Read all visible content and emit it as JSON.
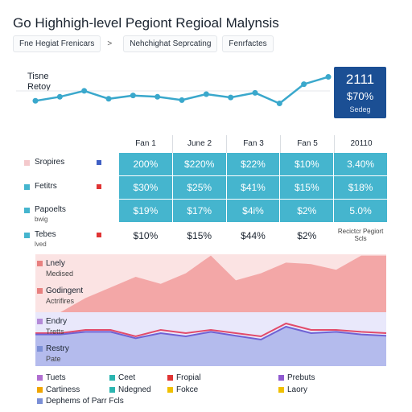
{
  "header": {
    "title": "Go Highhigh-level Pegiont Regioal Malynsis",
    "breadcrumbs": [
      "Fne Hegiat Frenicars",
      "Nehchighat Seprcating",
      "Fenrfactes"
    ],
    "separator": ">"
  },
  "spark": {
    "label_line1": "Tisne",
    "label_line2": "Retoy",
    "series_color": "#3aa8cc"
  },
  "kpi": {
    "value": "2111",
    "percent": "$70%",
    "caption": "Sedeg",
    "color": "#1b4f94"
  },
  "table": {
    "columns": [
      "Fan 1",
      "June 2",
      "Fan 3",
      "Fan 5",
      "20110"
    ],
    "rows": [
      {
        "label": "Sropires",
        "sub": "",
        "swatch": "#f4c9cc",
        "marker": "#3f5fc4",
        "cells": [
          "200%",
          "$220%",
          "$22%",
          "$10%",
          "3.40%"
        ],
        "style": "teal"
      },
      {
        "label": "Fetitrs",
        "sub": "",
        "swatch": "#45b5ce",
        "marker": "#e03434",
        "cells": [
          "$30%",
          "$25%",
          "$41%",
          "$15%",
          "$18%"
        ],
        "style": "teal"
      },
      {
        "label": "Papoelts",
        "sub": "bwig",
        "swatch": "#45b5ce",
        "marker": "",
        "cells": [
          "$19%",
          "$17%",
          "$4i%",
          "$2%",
          "5.0%"
        ],
        "style": "teal"
      },
      {
        "label": "Tebes",
        "sub": "lved",
        "swatch": "#45b5ce",
        "marker": "#e03434",
        "cells": [
          "$10%",
          "$15%",
          "$44%",
          "$2%",
          "Recictcr Pegiort Scls"
        ],
        "style": "plain"
      }
    ]
  },
  "area_labels": [
    {
      "line1": "Lnely",
      "line2": "Medised",
      "swatch": "#e8807f"
    },
    {
      "line1": "Godingent",
      "line2": "Actrifires",
      "swatch": "#e8807f"
    },
    {
      "line1": "Endry",
      "line2": "Tretts",
      "swatch": "#b48ad8"
    },
    {
      "line1": "Restry",
      "line2": "Pate",
      "swatch": "#7b8fd6"
    }
  ],
  "legend": [
    {
      "label": "Tuets",
      "color": "#b06ed0"
    },
    {
      "label": "Ceet",
      "color": "#2bb5b0"
    },
    {
      "label": "Fropial",
      "color": "#e03434"
    },
    {
      "label": "Prebuts",
      "color": "#8f5ad0"
    },
    {
      "label": "Cartiness",
      "color": "#f0a500"
    },
    {
      "label": "Ndegned",
      "color": "#2bb5b0"
    },
    {
      "label": "Fokce",
      "color": "#f0c000"
    },
    {
      "label": "Laory",
      "color": "#f0c000"
    },
    {
      "label": "Dephems of Parr Fcls",
      "color": "#7b8fd6"
    }
  ],
  "chart_data": [
    {
      "type": "line",
      "title": "",
      "x": [
        1,
        2,
        3,
        4,
        5,
        6,
        7,
        8,
        9,
        10,
        11,
        12,
        13
      ],
      "series": [
        {
          "values": [
            30,
            36,
            45,
            33,
            38,
            36,
            31,
            40,
            35,
            42,
            26,
            55,
            66
          ]
        }
      ],
      "ylim": [
        0,
        80
      ],
      "grid": false
    },
    {
      "type": "area",
      "title": "",
      "x": [
        1,
        2,
        3,
        4,
        5,
        6,
        7,
        8,
        9,
        10,
        11,
        12,
        13,
        14,
        15
      ],
      "series": [
        {
          "values": [
            0,
            0,
            20,
            35,
            50,
            40,
            55,
            80,
            45,
            55,
            70,
            68,
            60,
            80,
            80
          ]
        },
        {
          "values": [
            20,
            20,
            25,
            25,
            15,
            25,
            20,
            25,
            20,
            15,
            35,
            25,
            25,
            22,
            20
          ]
        },
        {
          "values": [
            18,
            18,
            22,
            22,
            12,
            20,
            15,
            22,
            16,
            10,
            30,
            20,
            22,
            18,
            16
          ]
        }
      ],
      "ylim": [
        0,
        100
      ],
      "grid": false
    }
  ]
}
